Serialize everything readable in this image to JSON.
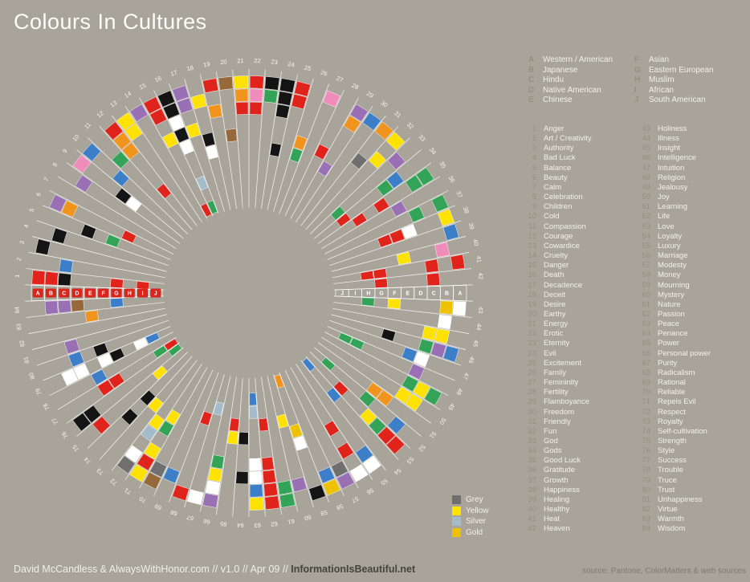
{
  "title": "Colours In Cultures",
  "cultures": [
    {
      "letter": "A",
      "name": "Western / American"
    },
    {
      "letter": "B",
      "name": "Japanese"
    },
    {
      "letter": "C",
      "name": "Hindu"
    },
    {
      "letter": "D",
      "name": "Native American"
    },
    {
      "letter": "E",
      "name": "Chinese"
    },
    {
      "letter": "F",
      "name": "Asian"
    },
    {
      "letter": "G",
      "name": "Eastern European"
    },
    {
      "letter": "H",
      "name": "Muslim"
    },
    {
      "letter": "I",
      "name": "African"
    },
    {
      "letter": "J",
      "name": "South American"
    }
  ],
  "color_legend": [
    {
      "name": "Grey",
      "hex": "#6f6f6f"
    },
    {
      "name": "Yellow",
      "hex": "#ffe200"
    },
    {
      "name": "Silver",
      "hex": "#a3bccc"
    },
    {
      "name": "Gold",
      "hex": "#eec200"
    }
  ],
  "footer": {
    "credits": "David McCandless & AlwaysWithHonor.com  // v1.0 // Apr 09 // ",
    "site": "InformationIsBeautiful.net",
    "source": "source: Pantone, ColorMatters & web sources"
  },
  "chart_data": {
    "type": "radial-matrix",
    "title": "Colours In Cultures",
    "rings_outer_to_inner": [
      "A",
      "B",
      "C",
      "D",
      "E",
      "F",
      "G",
      "H",
      "I",
      "J"
    ],
    "palette": {
      "red": "#e0241b",
      "orange": "#f0941d",
      "yellow": "#ffe200",
      "gold": "#eec200",
      "green": "#33a457",
      "blue": "#3d7ec9",
      "purple": "#9a70b5",
      "pink": "#f08cba",
      "brown": "#96683a",
      "black": "#141414",
      "white": "#ffffff",
      "grey": "#6f6f6f",
      "silver": "#a3bccc"
    },
    "background": "#a8a49a",
    "ring_label_tag_color": "#d9251c",
    "concepts": [
      "Anger",
      "Art / Creativity",
      "Authority",
      "Bad Luck",
      "Balance",
      "Beauty",
      "Calm",
      "Celebration",
      "Children",
      "Cold",
      "Compassion",
      "Courage",
      "Cowardice",
      "Cruelty",
      "Danger",
      "Death",
      "Decadence",
      "Deceit",
      "Desire",
      "Earthy",
      "Energy",
      "Erotic",
      "Eternity",
      "Evil",
      "Excitement",
      "Family",
      "Femininity",
      "Fertility",
      "Flamboyance",
      "Freedom",
      "Friendly",
      "Fun",
      "God",
      "Gods",
      "Good Luck",
      "Gratitude",
      "Growth",
      "Happiness",
      "Healing",
      "Healthy",
      "Heat",
      "Heaven",
      "Holiness",
      "Illness",
      "Insight",
      "Intelligence",
      "Intuition",
      "Religion",
      "Jealousy",
      "Joy",
      "Learning",
      "Life",
      "Love",
      "Loyalty",
      "Luxury",
      "Marriage",
      "Modesty",
      "Money",
      "Mourning",
      "Mystery",
      "Nature",
      "Passion",
      "Peace",
      "Penance",
      "Power",
      "Personal power",
      "Purity",
      "Radicalism",
      "Rational",
      "Reliable",
      "Repels Evil",
      "Respect",
      "Royalty",
      "Self-cultivation",
      "Strength",
      "Style",
      "Success",
      "Trouble",
      "Truce",
      "Trust",
      "Unhappiness",
      "Virtue",
      "Warmth",
      "Wisdom"
    ],
    "cells": {
      "1": {
        "A": "red",
        "B": "red",
        "C": "black",
        "G": "red",
        "I": "red"
      },
      "2": {
        "C": "blue"
      },
      "3": {
        "A": "black"
      },
      "4": {
        "B": "black"
      },
      "5": {
        "D": "black",
        "F": "green"
      },
      "6": {
        "A": "purple",
        "B": "orange",
        "G": "red"
      },
      "7": {},
      "8": {
        "B": "purple"
      },
      "9": {
        "A": "pink",
        "E": "black",
        "F": "white"
      },
      "10": {
        "A": "blue",
        "D": "blue"
      },
      "11": {
        "C": "green"
      },
      "12": {
        "A": "red",
        "B": "orange",
        "C": "orange",
        "G": "red"
      },
      "13": {
        "A": "yellow",
        "B": "yellow"
      },
      "14": {
        "A": "purple"
      },
      "15": {
        "A": "red",
        "B": "red",
        "D": "yellow",
        "J": "red"
      },
      "16": {
        "A": "black",
        "B": "black",
        "C": "white",
        "D": "black",
        "E": "white",
        "H": "silver",
        "J": "green"
      },
      "17": {
        "A": "purple",
        "B": "purple",
        "D": "yellow"
      },
      "18": {
        "B": "yellow",
        "E": "black",
        "F": "white"
      },
      "19": {
        "A": "red",
        "C": "orange"
      },
      "20": {
        "A": "brown",
        "E": "brown"
      },
      "21": {
        "A": "yellow",
        "B": "orange",
        "C": "red"
      },
      "22": {
        "A": "red",
        "B": "pink",
        "C": "red"
      },
      "23": {
        "A": "black",
        "B": "green"
      },
      "24": {
        "A": "black",
        "B": "black",
        "C": "black",
        "F": "black"
      },
      "25": {
        "A": "red",
        "B": "red"
      },
      "26": {
        "E": "orange",
        "F": "green"
      },
      "27": {
        "A": "pink"
      },
      "28": {
        "E": "red"
      },
      "29": {
        "A": "purple",
        "B": "orange",
        "F": "purple"
      },
      "30": {
        "A": "blue"
      },
      "31": {
        "A": "orange",
        "D": "grey"
      },
      "32": {
        "A": "yellow",
        "C": "yellow"
      },
      "33": {
        "B": "purple",
        "H": "green"
      },
      "34": {
        "C": "blue",
        "D": "green",
        "H": "red"
      },
      "35": {
        "A": "green",
        "B": "green",
        "E": "red",
        "G": "red"
      },
      "36": {
        "D": "purple"
      },
      "37": {
        "A": "green",
        "C": "green"
      },
      "38": {
        "A": "yellow",
        "D": "white",
        "E": "red",
        "F": "red"
      },
      "39": {
        "A": "blue"
      },
      "40": {
        "B": "pink",
        "E": "yellow"
      },
      "41": {
        "A": "red",
        "C": "red",
        "G": "red",
        "H": "red"
      },
      "42": {
        "C": "red",
        "G": "red"
      },
      "43": {
        "A": "white",
        "B": "gold",
        "F": "yellow",
        "H": "green"
      },
      "44": {
        "B": "white"
      },
      "45": {
        "B": "yellow",
        "C": "yellow"
      },
      "46": {
        "A": "blue",
        "B": "purple",
        "C": "green",
        "F": "black"
      },
      "47": {
        "C": "white",
        "D": "blue"
      },
      "48": {
        "C": "purple",
        "H": "green",
        "I": "green"
      },
      "49": {
        "A": "green",
        "B": "yellow",
        "C": "green"
      },
      "50": {
        "B": "yellow",
        "C": "yellow"
      },
      "51": {
        "D": "orange",
        "E": "orange"
      },
      "52": {
        "B": "blue",
        "E": "green",
        "I": "green"
      },
      "53": {
        "A": "red",
        "B": "red",
        "C": "green",
        "D": "yellow",
        "G": "red"
      },
      "54": {
        "G": "blue",
        "J": "blue"
      },
      "55": {
        "A": "white",
        "B": "blue"
      },
      "56": {
        "A": "white",
        "C": "red",
        "E": "red"
      },
      "57": {
        "A": "purple",
        "B": "grey"
      },
      "58": {
        "A": "gold",
        "B": "blue"
      },
      "59": {
        "A": "black",
        "E": "white",
        "F": "gold",
        "J": "orange"
      },
      "60": {
        "B": "purple",
        "G": "yellow"
      },
      "61": {
        "A": "green",
        "B": "green"
      },
      "62": {
        "A": "red",
        "B": "red",
        "C": "red",
        "D": "red",
        "G": "red"
      },
      "63": {
        "A": "yellow",
        "B": "blue",
        "C": "white",
        "D": "white",
        "H": "silver",
        "I": "blue"
      },
      "64": {
        "C": "black",
        "F": "black"
      },
      "65": {
        "F": "yellow",
        "G": "red"
      },
      "66": {
        "A": "purple",
        "B": "white",
        "C": "yellow",
        "D": "green"
      },
      "67": {
        "A": "white",
        "H": "silver"
      },
      "68": {
        "A": "red",
        "G": "red"
      },
      "69": {
        "B": "blue"
      },
      "70": {
        "A": "brown",
        "B": "grey"
      },
      "71": {
        "A": "yellow",
        "B": "red",
        "C": "yellow",
        "E": "green",
        "F": "yellow"
      },
      "72": {
        "A": "grey",
        "B": "white",
        "D": "silver",
        "E": "yellow"
      },
      "73": {
        "F": "yellow"
      },
      "74": {
        "D": "black",
        "F": "black"
      },
      "75": {
        "B": "red",
        "H": "yellow"
      },
      "76": {
        "A": "black",
        "B": "black",
        "J": "green"
      },
      "77": {
        "D": "red",
        "E": "red",
        "I": "green",
        "J": "red"
      },
      "78": {
        "D": "blue"
      },
      "79": {
        "B": "white",
        "C": "white",
        "E": "white",
        "F": "black",
        "H": "white",
        "I": "blue"
      },
      "80": {
        "C": "blue",
        "E": "black"
      },
      "81": {
        "C": "purple"
      },
      "82": {},
      "83": {
        "E": "orange"
      },
      "84": {
        "B": "purple",
        "C": "purple",
        "D": "brown",
        "G": "blue"
      }
    }
  }
}
